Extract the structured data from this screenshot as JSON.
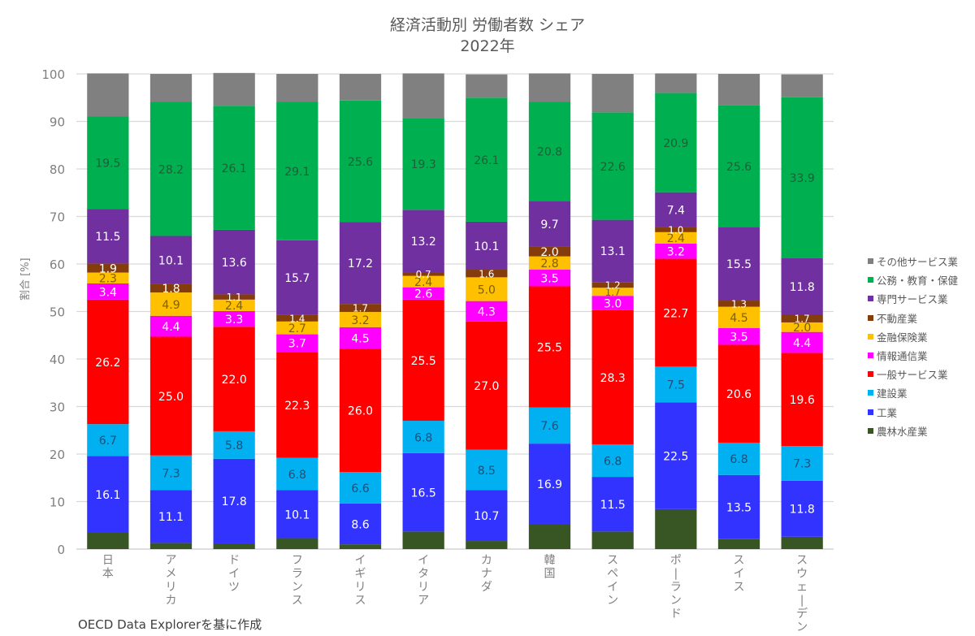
{
  "chart_data": {
    "type": "bar",
    "stacked": true,
    "title": "経済活動別 労働者数 シェア",
    "subtitle": "2022年",
    "xlabel": "",
    "ylabel": "割合 [%]",
    "ylim": [
      0,
      100
    ],
    "yticks": [
      0,
      10,
      20,
      30,
      40,
      50,
      60,
      70,
      80,
      90,
      100
    ],
    "grid": true,
    "legend_position": "right",
    "categories": [
      "日本",
      "アメリカ",
      "ドイツ",
      "フランス",
      "イギリス",
      "イタリア",
      "カナダ",
      "韓国",
      "スペイン",
      "ポーランド",
      "スイス",
      "スウェーデン"
    ],
    "series": [
      {
        "name": "農林水産業",
        "color": "#375623",
        "label_color": "",
        "values": [
          3.5,
          1.3,
          1.2,
          2.3,
          1.0,
          3.7,
          1.7,
          5.3,
          3.7,
          8.4,
          2.1,
          2.6
        ],
        "labeled": false
      },
      {
        "name": "工業",
        "color": "#3333ff",
        "label_color": "#ffffff",
        "values": [
          16.1,
          11.1,
          17.8,
          10.1,
          8.6,
          16.5,
          10.7,
          16.9,
          11.5,
          22.5,
          13.5,
          11.8
        ],
        "labeled": true
      },
      {
        "name": "建設業",
        "color": "#00b0f0",
        "label_color": "#1f4e79",
        "values": [
          6.7,
          7.3,
          5.8,
          6.8,
          6.6,
          6.8,
          8.5,
          7.6,
          6.8,
          7.5,
          6.8,
          7.3
        ],
        "labeled": true
      },
      {
        "name": "一般サービス業",
        "color": "#ff0000",
        "label_color": "#ffffff",
        "values": [
          26.2,
          25.0,
          22.0,
          22.3,
          26.0,
          25.5,
          27.0,
          25.5,
          28.3,
          22.7,
          20.6,
          19.6
        ],
        "labeled": true
      },
      {
        "name": "情報通信業",
        "color": "#ff00ff",
        "label_color": "#ffffff",
        "values": [
          3.4,
          4.4,
          3.3,
          3.7,
          4.5,
          2.6,
          4.3,
          3.5,
          3.0,
          3.2,
          3.5,
          4.4
        ],
        "labeled": true
      },
      {
        "name": "金融保険業",
        "color": "#ffc000",
        "label_color": "#7f6000",
        "values": [
          2.3,
          4.9,
          2.4,
          2.7,
          3.2,
          2.4,
          5.0,
          2.8,
          1.7,
          2.4,
          4.5,
          2.0
        ],
        "labeled": true
      },
      {
        "name": "不動産業",
        "color": "#843c0c",
        "label_color": "#ffffff",
        "values": [
          1.9,
          1.8,
          1.1,
          1.4,
          1.7,
          0.7,
          1.6,
          2.0,
          1.2,
          1.0,
          1.3,
          1.7
        ],
        "labeled": true
      },
      {
        "name": "専門サービス業",
        "color": "#7030a0",
        "label_color": "#ffffff",
        "values": [
          11.5,
          10.1,
          13.6,
          15.7,
          17.2,
          13.2,
          10.1,
          9.7,
          13.1,
          7.4,
          15.5,
          11.8
        ],
        "labeled": true
      },
      {
        "name": "公務・教育・保健",
        "color": "#00b050",
        "label_color": "#1e5f36",
        "values": [
          19.5,
          28.2,
          26.1,
          29.1,
          25.6,
          19.3,
          26.1,
          20.8,
          22.6,
          20.9,
          25.6,
          33.9
        ],
        "labeled": true
      },
      {
        "name": "その他サービス業",
        "color": "#808080",
        "label_color": "",
        "values": [
          9.0,
          5.9,
          6.9,
          5.9,
          5.6,
          9.4,
          4.9,
          6.0,
          8.1,
          4.1,
          6.6,
          4.8
        ],
        "labeled": false
      }
    ]
  },
  "legend_order": [
    "その他サービス業",
    "公務・教育・保健",
    "専門サービス業",
    "不動産業",
    "金融保険業",
    "情報通信業",
    "一般サービス業",
    "建設業",
    "工業",
    "農林水産業"
  ],
  "source_note": "OECD Data Explorerを基に作成"
}
